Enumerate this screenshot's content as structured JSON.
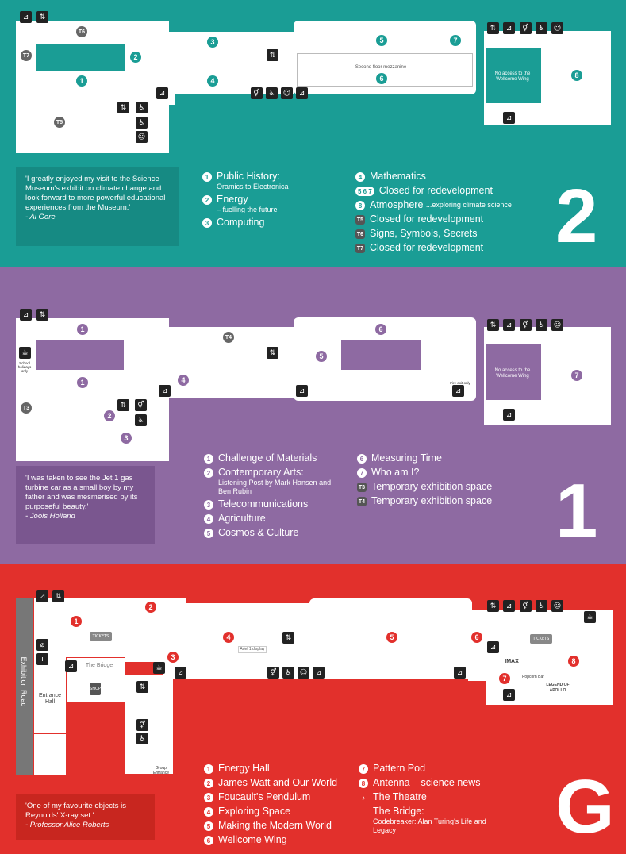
{
  "floor2": {
    "marker_labels": {
      "m1": "1",
      "m2": "2",
      "m3": "3",
      "m4": "4",
      "m5": "5",
      "m6": "6",
      "m7": "7",
      "m8": "8",
      "t5": "T5",
      "t6": "T6",
      "t7": "T7"
    },
    "mezzanine_label": "Second floor mezzanine",
    "no_access": "No access to the Wellcome Wing",
    "quote": "'I greatly enjoyed my visit to the Science Museum's exhibit on climate change and look forward to more powerful educational experiences from the Museum.'",
    "quote_author": "- Al Gore",
    "legend": [
      {
        "num": "1",
        "title": "Public History:",
        "sub": "Oramics to Electronica"
      },
      {
        "num": "2",
        "title": "Energy",
        "sub": "– fuelling the future"
      },
      {
        "num": "3",
        "title": "Computing",
        "sub": ""
      }
    ],
    "legend2": [
      {
        "num": "4",
        "title": "Mathematics",
        "sub": ""
      },
      {
        "num": "5 6 7",
        "title": "Closed for redevelopment",
        "sub": ""
      },
      {
        "num": "8",
        "title": "Atmosphere",
        "sub": "...exploring climate science"
      },
      {
        "num": "T5",
        "title": "Closed for redevelopment",
        "sub": ""
      },
      {
        "num": "T6",
        "title": "Signs, Symbols, Secrets",
        "sub": ""
      },
      {
        "num": "T7",
        "title": "Closed for redevelopment",
        "sub": ""
      }
    ],
    "floor_number": "2"
  },
  "floor1": {
    "marker_labels": {
      "m1a": "1",
      "m1b": "1",
      "m2": "2",
      "m3": "3",
      "m4": "4",
      "m5": "5",
      "m6": "6",
      "m7": "7",
      "t3": "T3",
      "t4": "T4"
    },
    "school_note": "School holidays only",
    "fire_exit": "Fire exit only",
    "no_access": "No access to the Wellcome Wing",
    "quote": "'I was taken to see the Jet 1 gas turbine car as a small boy by my father and was mesmerised by its purposeful beauty.'",
    "quote_author": "- Jools Holland",
    "legend": [
      {
        "num": "1",
        "title": "Challenge of Materials",
        "sub": ""
      },
      {
        "num": "2",
        "title": "Contemporary Arts:",
        "sub": "Listening Post by Mark Hansen and Ben Rubin"
      },
      {
        "num": "3",
        "title": "Telecommunications",
        "sub": ""
      },
      {
        "num": "4",
        "title": "Agriculture",
        "sub": ""
      },
      {
        "num": "5",
        "title": "Cosmos & Culture",
        "sub": ""
      }
    ],
    "legend2": [
      {
        "num": "6",
        "title": "Measuring Time",
        "sub": ""
      },
      {
        "num": "7",
        "title": "Who am I?",
        "sub": ""
      },
      {
        "num": "T3",
        "title": "Temporary exhibition space",
        "sub": ""
      },
      {
        "num": "T4",
        "title": "Temporary exhibition space",
        "sub": ""
      }
    ],
    "floor_number": "1"
  },
  "floorG": {
    "marker_labels": {
      "m1": "1",
      "m2": "2",
      "m3": "3",
      "m4": "4",
      "m5": "5",
      "m6": "6",
      "m7": "7",
      "m8": "8"
    },
    "exhibition_road": "Exhibition Road",
    "entrance_hall": "Entrance Hall",
    "the_bridge": "The Bridge",
    "tickets1": "TICKETS",
    "tickets2": "TICKETS",
    "shop": "SHOP",
    "group_entrance": "Group Entrance",
    "ariel": "Ariel 1 display",
    "imax": "IMAX",
    "popcorn": "Popcorn Bar",
    "apollo": "LEGEND OF APOLLO",
    "quote": "'One of my favourite objects is Reynolds' X-ray set.'",
    "quote_author": "- Professor Alice Roberts",
    "legend": [
      {
        "num": "1",
        "title": "Energy Hall",
        "sub": ""
      },
      {
        "num": "2",
        "title": "James Watt and Our World",
        "sub": ""
      },
      {
        "num": "3",
        "title": "Foucault's Pendulum",
        "sub": ""
      },
      {
        "num": "4",
        "title": "Exploring Space",
        "sub": ""
      },
      {
        "num": "5",
        "title": "Making the Modern World",
        "sub": ""
      },
      {
        "num": "6",
        "title": "Wellcome Wing",
        "sub": ""
      }
    ],
    "legend2": [
      {
        "num": "7",
        "title": "Pattern Pod",
        "sub": ""
      },
      {
        "num": "8",
        "title": "Antenna – science news",
        "sub": ""
      },
      {
        "num": "♪",
        "title": "The Theatre",
        "sub": ""
      },
      {
        "num": "",
        "title": "The Bridge:",
        "sub": "Codebreaker: Alan Turing's Life and Legacy"
      }
    ],
    "floor_number": "G"
  },
  "icons": {
    "stairs": "stairs-icon",
    "lift": "lift-icon",
    "toilets": "toilets-icon",
    "accessible": "accessible-icon",
    "baby": "baby-change-icon",
    "cafe": "cafe-icon",
    "info": "info-icon"
  },
  "colors": {
    "floor2": "#1a9d95",
    "floor1": "#8e6aa2",
    "floorG": "#e2302c"
  }
}
